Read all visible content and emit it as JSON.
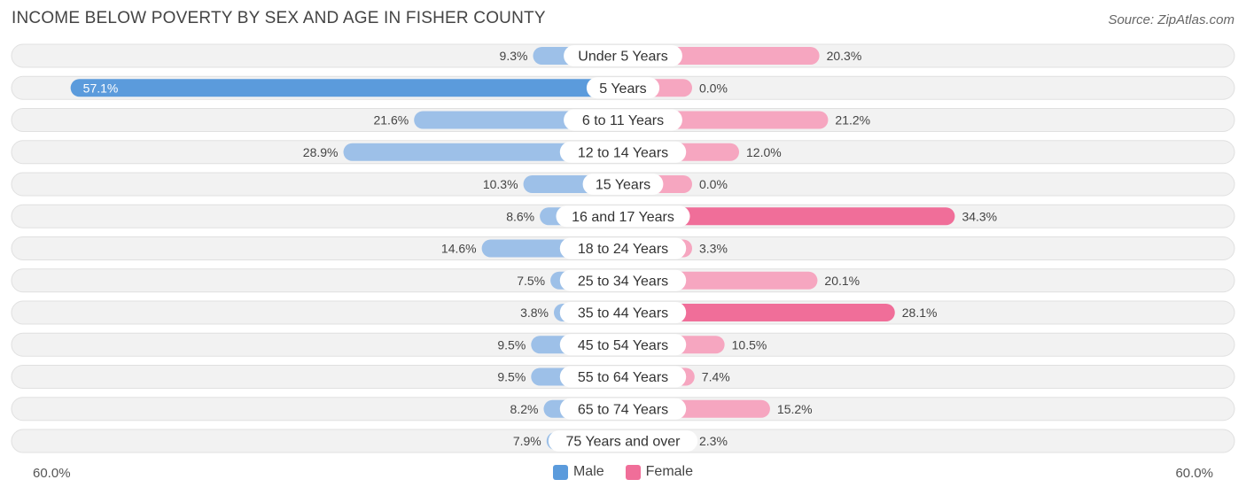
{
  "title": "INCOME BELOW POVERTY BY SEX AND AGE IN FISHER COUNTY",
  "source": "Source: ZipAtlas.com",
  "colors": {
    "male_strong": "#5b9bdc",
    "male_light": "#9dc0e8",
    "female_strong": "#f06e99",
    "female_light": "#f6a6c0",
    "row_bg": "#f2f2f2",
    "row_border": "#e0e0e0"
  },
  "chart_data": {
    "type": "bar",
    "orientation": "horizontal-diverging",
    "title": "INCOME BELOW POVERTY BY SEX AND AGE IN FISHER COUNTY",
    "categories": [
      "Under 5 Years",
      "5 Years",
      "6 to 11 Years",
      "12 to 14 Years",
      "15 Years",
      "16 and 17 Years",
      "18 to 24 Years",
      "25 to 34 Years",
      "35 to 44 Years",
      "45 to 54 Years",
      "55 to 64 Years",
      "65 to 74 Years",
      "75 Years and over"
    ],
    "series": [
      {
        "name": "Male",
        "values": [
          9.3,
          57.1,
          21.6,
          28.9,
          10.3,
          8.6,
          14.6,
          7.5,
          3.8,
          9.5,
          9.5,
          8.2,
          7.9
        ],
        "labels": [
          "9.3%",
          "57.1%",
          "21.6%",
          "28.9%",
          "10.3%",
          "8.6%",
          "14.6%",
          "7.5%",
          "3.8%",
          "9.5%",
          "9.5%",
          "8.2%",
          "7.9%"
        ]
      },
      {
        "name": "Female",
        "values": [
          20.3,
          0.0,
          21.2,
          12.0,
          0.0,
          34.3,
          3.3,
          20.1,
          28.1,
          10.5,
          7.4,
          15.2,
          2.3
        ],
        "labels": [
          "20.3%",
          "0.0%",
          "21.2%",
          "12.0%",
          "0.0%",
          "34.3%",
          "3.3%",
          "20.1%",
          "28.1%",
          "10.5%",
          "7.4%",
          "15.2%",
          "2.3%"
        ]
      }
    ],
    "xlim": [
      -60,
      60
    ],
    "axis_left_label": "60.0%",
    "axis_right_label": "60.0%",
    "legend": [
      "Male",
      "Female"
    ],
    "legend_position": "bottom-center"
  }
}
